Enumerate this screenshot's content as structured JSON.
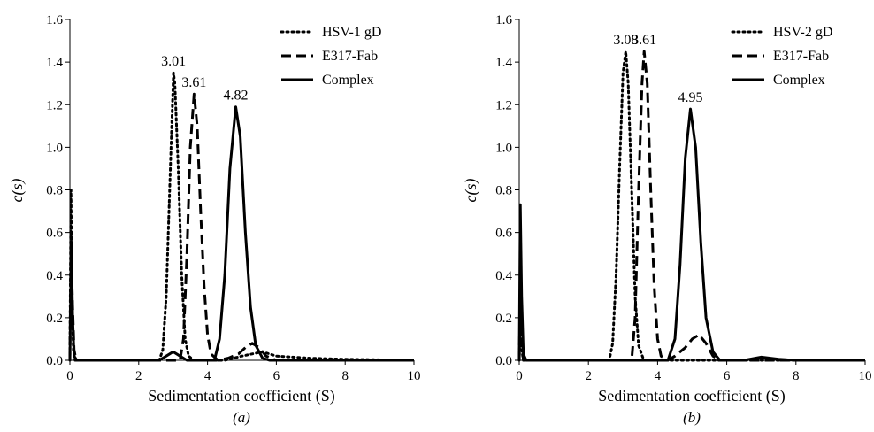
{
  "chart_data": [
    {
      "type": "line",
      "panel_label": "(a)",
      "xlabel": "Sedimentation coefficient (S)",
      "ylabel": "c(s)",
      "xlim": [
        0,
        10
      ],
      "ylim": [
        0,
        1.6
      ],
      "x_ticks": [
        "0",
        "2",
        "4",
        "6",
        "8",
        "10"
      ],
      "y_ticks": [
        "0.0",
        "0.2",
        "0.4",
        "0.6",
        "0.8",
        "1.0",
        "1.2",
        "1.4",
        "1.6"
      ],
      "grid": false,
      "legend_position": "top-right",
      "series": [
        {
          "name": "HSV-1 gD",
          "style": "dotted",
          "points": [
            [
              0,
              0
            ],
            [
              0.03,
              0.8
            ],
            [
              0.06,
              0.3
            ],
            [
              0.1,
              0.05
            ],
            [
              0.15,
              0
            ],
            [
              2.6,
              0
            ],
            [
              2.7,
              0.05
            ],
            [
              2.8,
              0.3
            ],
            [
              2.9,
              0.8
            ],
            [
              3.0,
              1.3
            ],
            [
              3.01,
              1.35
            ],
            [
              3.05,
              1.3
            ],
            [
              3.15,
              0.9
            ],
            [
              3.25,
              0.4
            ],
            [
              3.35,
              0.1
            ],
            [
              3.45,
              0.02
            ],
            [
              3.6,
              0
            ],
            [
              4.5,
              0
            ],
            [
              5.0,
              0.02
            ],
            [
              5.6,
              0.04
            ],
            [
              6.0,
              0.02
            ],
            [
              7.0,
              0.01
            ],
            [
              8.0,
              0.005
            ],
            [
              10,
              0
            ]
          ]
        },
        {
          "name": "E317-Fab",
          "style": "dashed",
          "points": [
            [
              0,
              0
            ],
            [
              0.03,
              0.6
            ],
            [
              0.07,
              0.3
            ],
            [
              0.12,
              0.05
            ],
            [
              0.18,
              0
            ],
            [
              3.2,
              0
            ],
            [
              3.3,
              0.1
            ],
            [
              3.4,
              0.5
            ],
            [
              3.5,
              1.0
            ],
            [
              3.61,
              1.25
            ],
            [
              3.7,
              1.1
            ],
            [
              3.8,
              0.7
            ],
            [
              3.9,
              0.35
            ],
            [
              4.0,
              0.12
            ],
            [
              4.1,
              0.03
            ],
            [
              4.3,
              0
            ],
            [
              4.6,
              0.01
            ],
            [
              4.9,
              0.03
            ],
            [
              5.1,
              0.06
            ],
            [
              5.3,
              0.08
            ],
            [
              5.5,
              0.06
            ],
            [
              5.7,
              0.02
            ],
            [
              6.0,
              0
            ],
            [
              10,
              0
            ]
          ]
        },
        {
          "name": "Complex",
          "style": "solid",
          "points": [
            [
              0,
              0
            ],
            [
              0.04,
              0.55
            ],
            [
              0.08,
              0.2
            ],
            [
              0.12,
              0.02
            ],
            [
              0.2,
              0
            ],
            [
              2.6,
              0
            ],
            [
              2.8,
              0.02
            ],
            [
              3.0,
              0.04
            ],
            [
              3.2,
              0.02
            ],
            [
              3.4,
              0
            ],
            [
              4.2,
              0
            ],
            [
              4.35,
              0.1
            ],
            [
              4.5,
              0.4
            ],
            [
              4.65,
              0.9
            ],
            [
              4.82,
              1.19
            ],
            [
              4.95,
              1.05
            ],
            [
              5.1,
              0.6
            ],
            [
              5.25,
              0.25
            ],
            [
              5.4,
              0.07
            ],
            [
              5.6,
              0.01
            ],
            [
              5.8,
              0
            ],
            [
              10,
              0
            ]
          ]
        }
      ],
      "annotations": [
        {
          "text": "3.01",
          "x": 3.01,
          "y": 1.35
        },
        {
          "text": "3.61",
          "x": 3.61,
          "y": 1.25
        },
        {
          "text": "4.82",
          "x": 4.82,
          "y": 1.19
        }
      ]
    },
    {
      "type": "line",
      "panel_label": "(b)",
      "xlabel": "Sedimentation coefficient (S)",
      "ylabel": "c(s)",
      "xlim": [
        0,
        10
      ],
      "ylim": [
        0,
        1.6
      ],
      "x_ticks": [
        "0",
        "2",
        "4",
        "6",
        "8",
        "10"
      ],
      "y_ticks": [
        "0.0",
        "0.2",
        "0.4",
        "0.6",
        "0.8",
        "1.0",
        "1.2",
        "1.4",
        "1.6"
      ],
      "grid": false,
      "legend_position": "top-right",
      "series": [
        {
          "name": "HSV-2 gD",
          "style": "dotted",
          "points": [
            [
              0,
              0
            ],
            [
              0.03,
              0.2
            ],
            [
              0.07,
              0.05
            ],
            [
              0.12,
              0
            ],
            [
              2.6,
              0
            ],
            [
              2.7,
              0.08
            ],
            [
              2.8,
              0.4
            ],
            [
              2.9,
              0.9
            ],
            [
              3.0,
              1.35
            ],
            [
              3.08,
              1.45
            ],
            [
              3.15,
              1.3
            ],
            [
              3.25,
              0.8
            ],
            [
              3.35,
              0.3
            ],
            [
              3.45,
              0.07
            ],
            [
              3.6,
              0
            ],
            [
              10,
              0
            ]
          ]
        },
        {
          "name": "E317-Fab",
          "style": "dashed",
          "points": [
            [
              0,
              0
            ],
            [
              0.03,
              0.3
            ],
            [
              0.07,
              0.1
            ],
            [
              0.12,
              0
            ],
            [
              3.25,
              0
            ],
            [
              3.35,
              0.2
            ],
            [
              3.45,
              0.8
            ],
            [
              3.55,
              1.3
            ],
            [
              3.61,
              1.45
            ],
            [
              3.7,
              1.3
            ],
            [
              3.8,
              0.8
            ],
            [
              3.9,
              0.35
            ],
            [
              4.0,
              0.1
            ],
            [
              4.1,
              0.02
            ],
            [
              4.3,
              0
            ],
            [
              4.5,
              0.02
            ],
            [
              4.8,
              0.06
            ],
            [
              5.0,
              0.1
            ],
            [
              5.2,
              0.12
            ],
            [
              5.4,
              0.08
            ],
            [
              5.6,
              0.02
            ],
            [
              5.8,
              0
            ],
            [
              10,
              0
            ]
          ]
        },
        {
          "name": "Complex",
          "style": "solid",
          "points": [
            [
              0,
              0
            ],
            [
              0.03,
              0.73
            ],
            [
              0.07,
              0.3
            ],
            [
              0.12,
              0.03
            ],
            [
              0.2,
              0
            ],
            [
              4.3,
              0
            ],
            [
              4.5,
              0.1
            ],
            [
              4.65,
              0.45
            ],
            [
              4.8,
              0.95
            ],
            [
              4.95,
              1.18
            ],
            [
              5.1,
              1.0
            ],
            [
              5.25,
              0.55
            ],
            [
              5.4,
              0.2
            ],
            [
              5.6,
              0.04
            ],
            [
              5.8,
              0
            ],
            [
              6.5,
              0
            ],
            [
              7.0,
              0.015
            ],
            [
              7.5,
              0.005
            ],
            [
              8.0,
              0
            ],
            [
              10,
              0
            ]
          ]
        }
      ],
      "annotations": [
        {
          "text": "3.08",
          "x": 3.08,
          "y": 1.45
        },
        {
          "text": "3.61",
          "x": 3.61,
          "y": 1.45
        },
        {
          "text": "4.95",
          "x": 4.95,
          "y": 1.18
        }
      ]
    }
  ]
}
